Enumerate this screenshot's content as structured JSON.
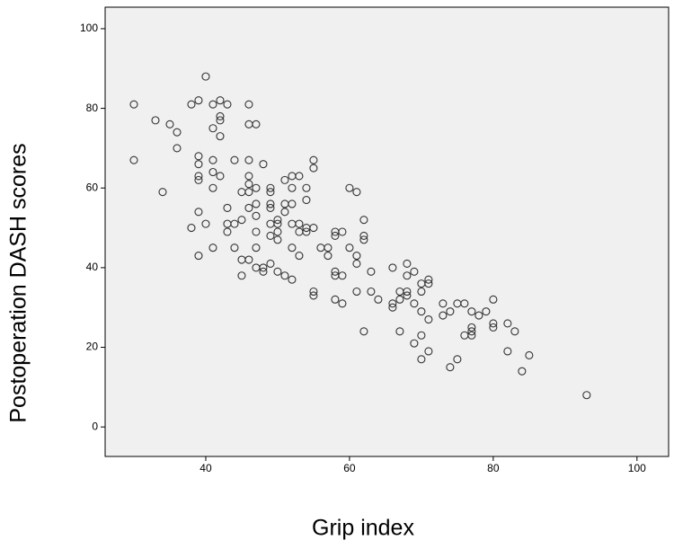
{
  "chart_data": {
    "type": "scatter",
    "x_label": "Grip index",
    "y_label": "Postoperation  DASH scores",
    "x": [
      30,
      30,
      33,
      34,
      35,
      36,
      36,
      38,
      38,
      39,
      39,
      39,
      39,
      39,
      39,
      39,
      40,
      40,
      41,
      41,
      41,
      41,
      41,
      41,
      42,
      42,
      42,
      42,
      42,
      43,
      43,
      43,
      43,
      44,
      44,
      44,
      45,
      45,
      45,
      45,
      46,
      46,
      46,
      46,
      46,
      46,
      46,
      46,
      47,
      47,
      47,
      47,
      47,
      47,
      47,
      48,
      48,
      48,
      49,
      49,
      49,
      49,
      49,
      49,
      49,
      50,
      50,
      50,
      50,
      50,
      51,
      51,
      51,
      51,
      52,
      52,
      52,
      52,
      52,
      52,
      53,
      53,
      53,
      53,
      54,
      54,
      54,
      54,
      55,
      55,
      55,
      55,
      55,
      56,
      57,
      57,
      58,
      58,
      58,
      58,
      58,
      59,
      59,
      59,
      60,
      60,
      61,
      61,
      61,
      61,
      62,
      62,
      62,
      62,
      63,
      63,
      64,
      66,
      66,
      66,
      67,
      67,
      67,
      68,
      68,
      68,
      68,
      69,
      69,
      69,
      70,
      70,
      70,
      70,
      70,
      71,
      71,
      71,
      71,
      73,
      73,
      74,
      74,
      75,
      75,
      76,
      76,
      77,
      77,
      77,
      77,
      78,
      79,
      80,
      80,
      80,
      82,
      82,
      83,
      84,
      85,
      93
    ],
    "values": [
      81,
      67,
      77,
      59,
      76,
      74,
      70,
      81,
      50,
      82,
      68,
      66,
      63,
      62,
      54,
      43,
      88,
      51,
      81,
      75,
      67,
      64,
      60,
      45,
      82,
      78,
      77,
      73,
      63,
      81,
      55,
      51,
      49,
      67,
      51,
      45,
      59,
      52,
      42,
      38,
      81,
      76,
      67,
      63,
      61,
      59,
      55,
      42,
      76,
      60,
      56,
      53,
      49,
      45,
      40,
      66,
      40,
      39,
      60,
      59,
      56,
      55,
      51,
      48,
      41,
      52,
      51,
      49,
      47,
      39,
      62,
      56,
      54,
      38,
      63,
      60,
      56,
      51,
      45,
      37,
      63,
      51,
      49,
      43,
      60,
      57,
      50,
      49,
      67,
      65,
      50,
      34,
      33,
      45,
      45,
      43,
      48,
      49,
      39,
      38,
      32,
      49,
      38,
      31,
      60,
      45,
      59,
      43,
      41,
      34,
      52,
      48,
      47,
      24,
      39,
      34,
      32,
      40,
      31,
      30,
      34,
      32,
      24,
      41,
      34,
      33,
      38,
      39,
      31,
      21,
      36,
      34,
      29,
      23,
      17,
      37,
      36,
      27,
      19,
      31,
      28,
      29,
      15,
      31,
      17,
      31,
      23,
      29,
      25,
      23,
      24,
      28,
      29,
      32,
      26,
      25,
      26,
      19,
      24,
      14,
      18,
      8
    ],
    "color": "#333333",
    "xlim": [
      26,
      104.4
    ],
    "ylim": [
      -7.4,
      105.4
    ],
    "xticks": [
      40,
      60,
      80,
      100
    ],
    "yticks": [
      0,
      20,
      40,
      60,
      80,
      100
    ]
  }
}
